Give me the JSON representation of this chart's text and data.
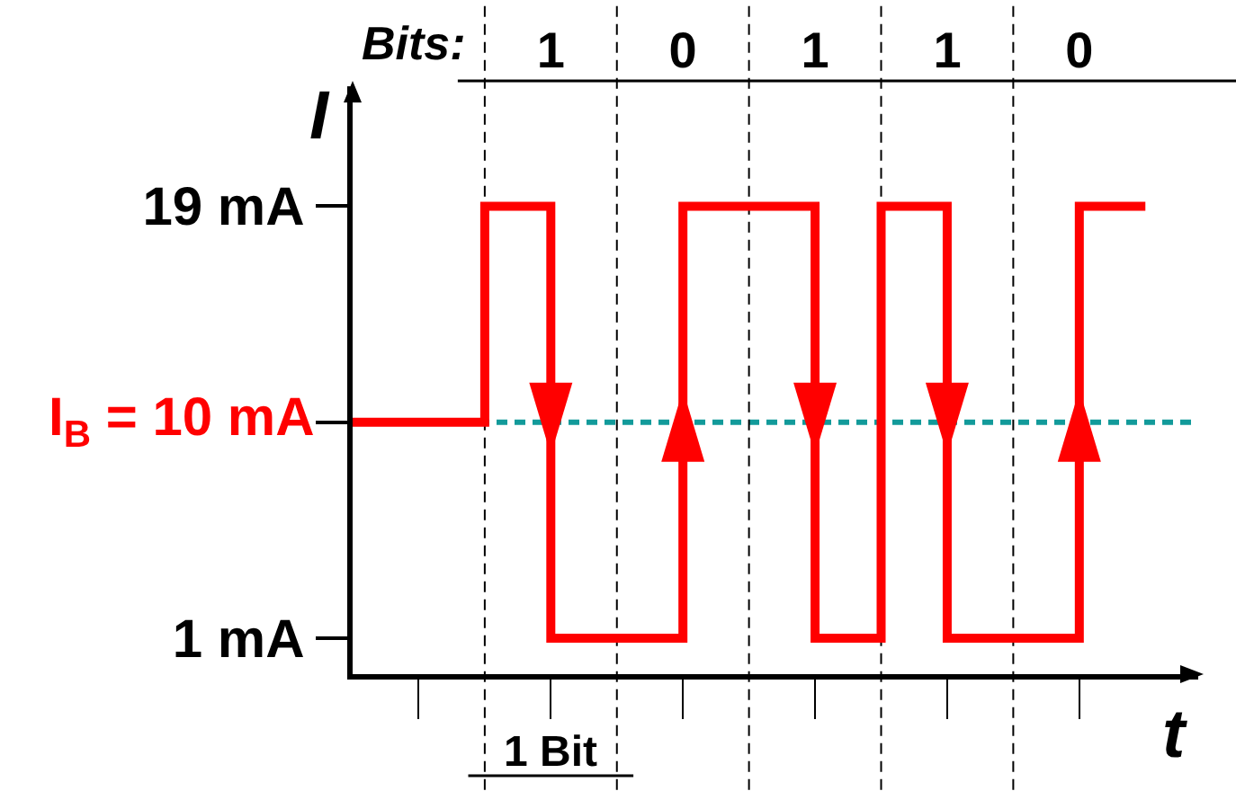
{
  "chart_data": {
    "type": "step",
    "xlabel": "t",
    "ylabel": "I",
    "x2label": "Bits:",
    "categories": [
      null,
      null,
      null,
      "1",
      null,
      "0",
      null,
      "1",
      null,
      "1",
      null,
      "0",
      null
    ],
    "series": [
      {
        "name": "I$_{B}$ = 10 mA",
        "color": "#ff0000",
        "values": [
          10,
          10,
          19,
          1,
          1,
          19,
          19,
          1,
          19,
          1,
          1,
          19,
          19
        ]
      }
    ],
    "ylim": [
      -0.5,
      24
    ],
    "yticks": [
      {
        "value": 1,
        "label": "1 mA"
      },
      {
        "value": 10,
        "label": null
      },
      {
        "value": 19,
        "label": "19 mA"
      }
    ],
    "ref_lines": [
      {
        "axis": "y",
        "value": 10,
        "color": "#129a9a",
        "line_style": "dashed"
      }
    ],
    "grid": "x",
    "annotations": [
      "1 Bit"
    ]
  }
}
